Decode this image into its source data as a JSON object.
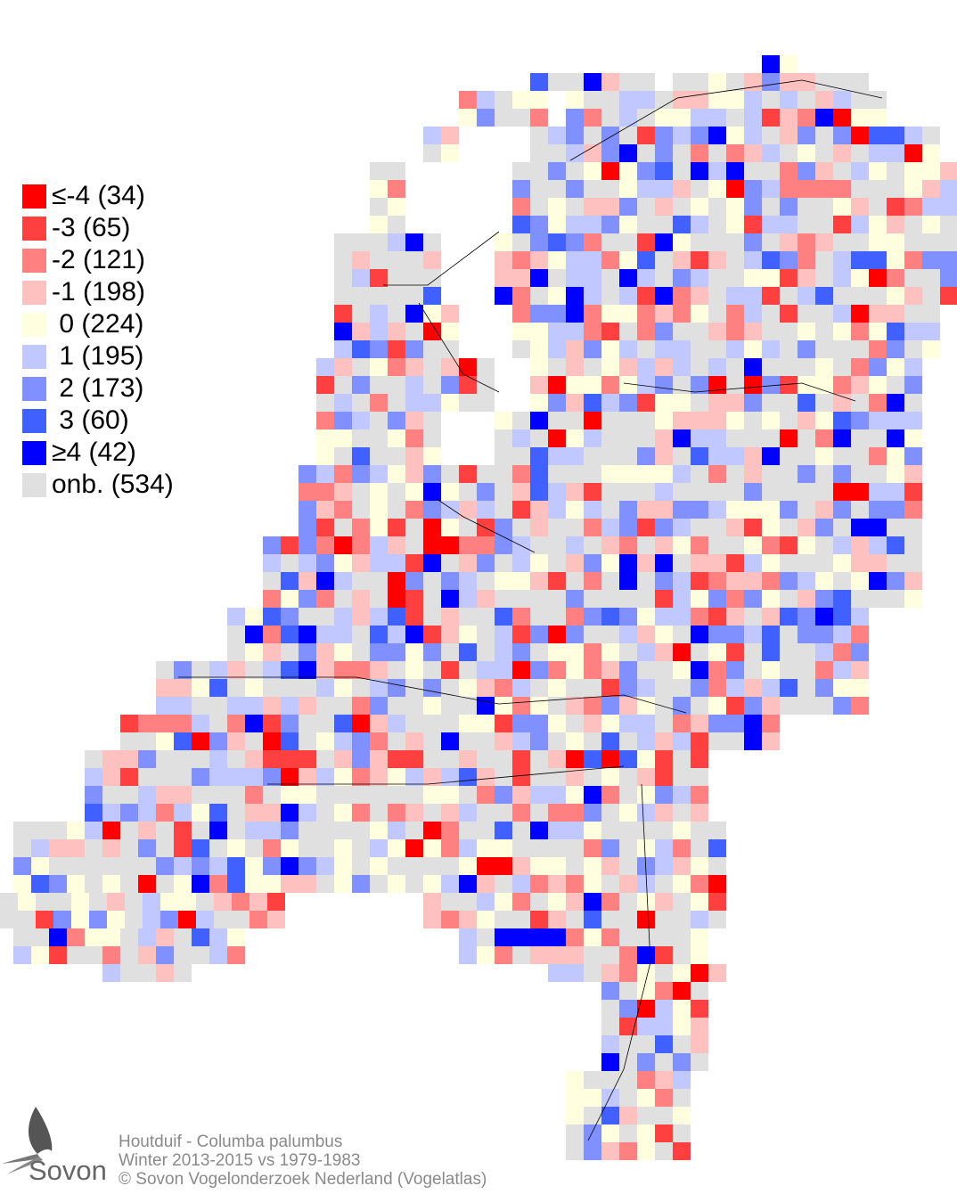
{
  "legend": {
    "items": [
      {
        "label": "≤-4 (34)",
        "color": "#ff0000"
      },
      {
        "label": "-3 (65)",
        "color": "#ff4040"
      },
      {
        "label": "-2 (121)",
        "color": "#ff8080"
      },
      {
        "label": "-1 (198)",
        "color": "#ffc0c0"
      },
      {
        "label": " 0 (224)",
        "color": "#ffffe0"
      },
      {
        "label": " 1 (195)",
        "color": "#c0c8ff"
      },
      {
        "label": " 2 (173)",
        "color": "#8090ff"
      },
      {
        "label": " 3 (60)",
        "color": "#4060ff"
      },
      {
        "label": "≥4 (42)",
        "color": "#0000ff"
      },
      {
        "label": "onb. (534)",
        "color": "#e0e0e0"
      }
    ]
  },
  "caption": {
    "species": "Houtduif - Columba palumbus",
    "period": "Winter 2013-2015 vs 1979-1983",
    "copyright": "© Sovon Vogelonderzoek Nederland (Vogelatlas)"
  },
  "logo": {
    "text": "Sovon"
  }
}
